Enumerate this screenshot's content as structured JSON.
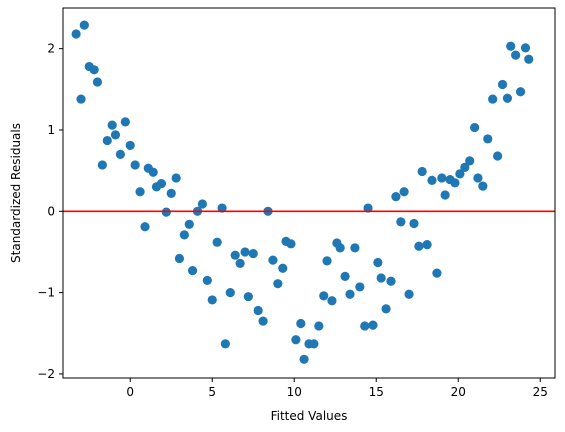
{
  "chart_data": {
    "type": "scatter",
    "xlabel": "Fitted Values",
    "ylabel": "Standardized Residuals",
    "xlim": [
      -4.1,
      25.9
    ],
    "ylim": [
      -2.05,
      2.5
    ],
    "xticks": [
      0,
      5,
      10,
      15,
      20,
      25
    ],
    "xtick_labels": [
      "0",
      "5",
      "10",
      "15",
      "20",
      "25"
    ],
    "yticks": [
      -2,
      -1,
      0,
      1,
      2
    ],
    "ytick_labels": [
      "−2",
      "−1",
      "0",
      "1",
      "2"
    ],
    "grid": false,
    "point_color": "#1f77b4",
    "reference_line": {
      "y": 0,
      "color": "#ff0000"
    },
    "points": [
      {
        "x": -3.3,
        "y": 2.18
      },
      {
        "x": -2.8,
        "y": 2.29
      },
      {
        "x": -3.0,
        "y": 1.38
      },
      {
        "x": -2.5,
        "y": 1.78
      },
      {
        "x": -2.2,
        "y": 1.74
      },
      {
        "x": -2.0,
        "y": 1.59
      },
      {
        "x": -1.7,
        "y": 0.57
      },
      {
        "x": -1.4,
        "y": 0.87
      },
      {
        "x": -1.1,
        "y": 1.06
      },
      {
        "x": -0.9,
        "y": 0.94
      },
      {
        "x": -0.6,
        "y": 0.7
      },
      {
        "x": -0.3,
        "y": 1.1
      },
      {
        "x": 0.0,
        "y": 0.81
      },
      {
        "x": 0.3,
        "y": 0.57
      },
      {
        "x": 0.6,
        "y": 0.24
      },
      {
        "x": 0.9,
        "y": -0.19
      },
      {
        "x": 1.1,
        "y": 0.53
      },
      {
        "x": 1.4,
        "y": 0.48
      },
      {
        "x": 1.6,
        "y": 0.3
      },
      {
        "x": 1.9,
        "y": 0.34
      },
      {
        "x": 2.2,
        "y": -0.01
      },
      {
        "x": 2.5,
        "y": 0.22
      },
      {
        "x": 2.8,
        "y": 0.41
      },
      {
        "x": 3.0,
        "y": -0.58
      },
      {
        "x": 3.3,
        "y": -0.29
      },
      {
        "x": 3.6,
        "y": -0.16
      },
      {
        "x": 3.8,
        "y": -0.73
      },
      {
        "x": 4.1,
        "y": 0.0
      },
      {
        "x": 4.4,
        "y": 0.09
      },
      {
        "x": 4.7,
        "y": -0.85
      },
      {
        "x": 5.0,
        "y": -1.09
      },
      {
        "x": 5.3,
        "y": -0.38
      },
      {
        "x": 5.6,
        "y": 0.04
      },
      {
        "x": 5.8,
        "y": -1.63
      },
      {
        "x": 6.1,
        "y": -1.0
      },
      {
        "x": 6.4,
        "y": -0.54
      },
      {
        "x": 6.7,
        "y": -0.64
      },
      {
        "x": 7.0,
        "y": -0.5
      },
      {
        "x": 7.2,
        "y": -1.05
      },
      {
        "x": 7.5,
        "y": -0.52
      },
      {
        "x": 7.8,
        "y": -1.22
      },
      {
        "x": 8.1,
        "y": -1.35
      },
      {
        "x": 8.4,
        "y": 0.0
      },
      {
        "x": 8.7,
        "y": -0.6
      },
      {
        "x": 9.0,
        "y": -0.89
      },
      {
        "x": 9.3,
        "y": -0.7
      },
      {
        "x": 9.5,
        "y": -0.37
      },
      {
        "x": 9.8,
        "y": -0.4
      },
      {
        "x": 10.1,
        "y": -1.58
      },
      {
        "x": 10.4,
        "y": -1.38
      },
      {
        "x": 10.6,
        "y": -1.82
      },
      {
        "x": 10.9,
        "y": -1.63
      },
      {
        "x": 11.2,
        "y": -1.63
      },
      {
        "x": 11.5,
        "y": -1.41
      },
      {
        "x": 11.8,
        "y": -1.04
      },
      {
        "x": 12.0,
        "y": -0.61
      },
      {
        "x": 12.3,
        "y": -1.1
      },
      {
        "x": 12.6,
        "y": -0.39
      },
      {
        "x": 12.8,
        "y": -0.45
      },
      {
        "x": 13.1,
        "y": -0.8
      },
      {
        "x": 13.4,
        "y": -1.02
      },
      {
        "x": 13.7,
        "y": -0.45
      },
      {
        "x": 14.0,
        "y": -0.93
      },
      {
        "x": 14.3,
        "y": -1.41
      },
      {
        "x": 14.5,
        "y": 0.04
      },
      {
        "x": 14.8,
        "y": -1.4
      },
      {
        "x": 15.1,
        "y": -0.63
      },
      {
        "x": 15.3,
        "y": -0.82
      },
      {
        "x": 15.6,
        "y": -1.2
      },
      {
        "x": 15.9,
        "y": -0.86
      },
      {
        "x": 16.2,
        "y": 0.18
      },
      {
        "x": 16.5,
        "y": -0.13
      },
      {
        "x": 16.7,
        "y": 0.24
      },
      {
        "x": 17.0,
        "y": -1.02
      },
      {
        "x": 17.3,
        "y": -0.15
      },
      {
        "x": 17.6,
        "y": -0.43
      },
      {
        "x": 17.8,
        "y": 0.49
      },
      {
        "x": 18.1,
        "y": -0.41
      },
      {
        "x": 18.4,
        "y": 0.38
      },
      {
        "x": 18.7,
        "y": -0.76
      },
      {
        "x": 19.0,
        "y": 0.41
      },
      {
        "x": 19.2,
        "y": 0.2
      },
      {
        "x": 19.5,
        "y": 0.39
      },
      {
        "x": 19.8,
        "y": 0.35
      },
      {
        "x": 20.1,
        "y": 0.46
      },
      {
        "x": 20.4,
        "y": 0.54
      },
      {
        "x": 20.7,
        "y": 0.62
      },
      {
        "x": 21.0,
        "y": 1.03
      },
      {
        "x": 21.2,
        "y": 0.41
      },
      {
        "x": 21.5,
        "y": 0.31
      },
      {
        "x": 21.8,
        "y": 0.89
      },
      {
        "x": 22.1,
        "y": 1.38
      },
      {
        "x": 22.4,
        "y": 0.68
      },
      {
        "x": 22.7,
        "y": 1.56
      },
      {
        "x": 23.0,
        "y": 1.39
      },
      {
        "x": 23.2,
        "y": 2.03
      },
      {
        "x": 23.5,
        "y": 1.92
      },
      {
        "x": 23.8,
        "y": 1.47
      },
      {
        "x": 24.1,
        "y": 2.01
      },
      {
        "x": 24.3,
        "y": 1.87
      }
    ]
  }
}
